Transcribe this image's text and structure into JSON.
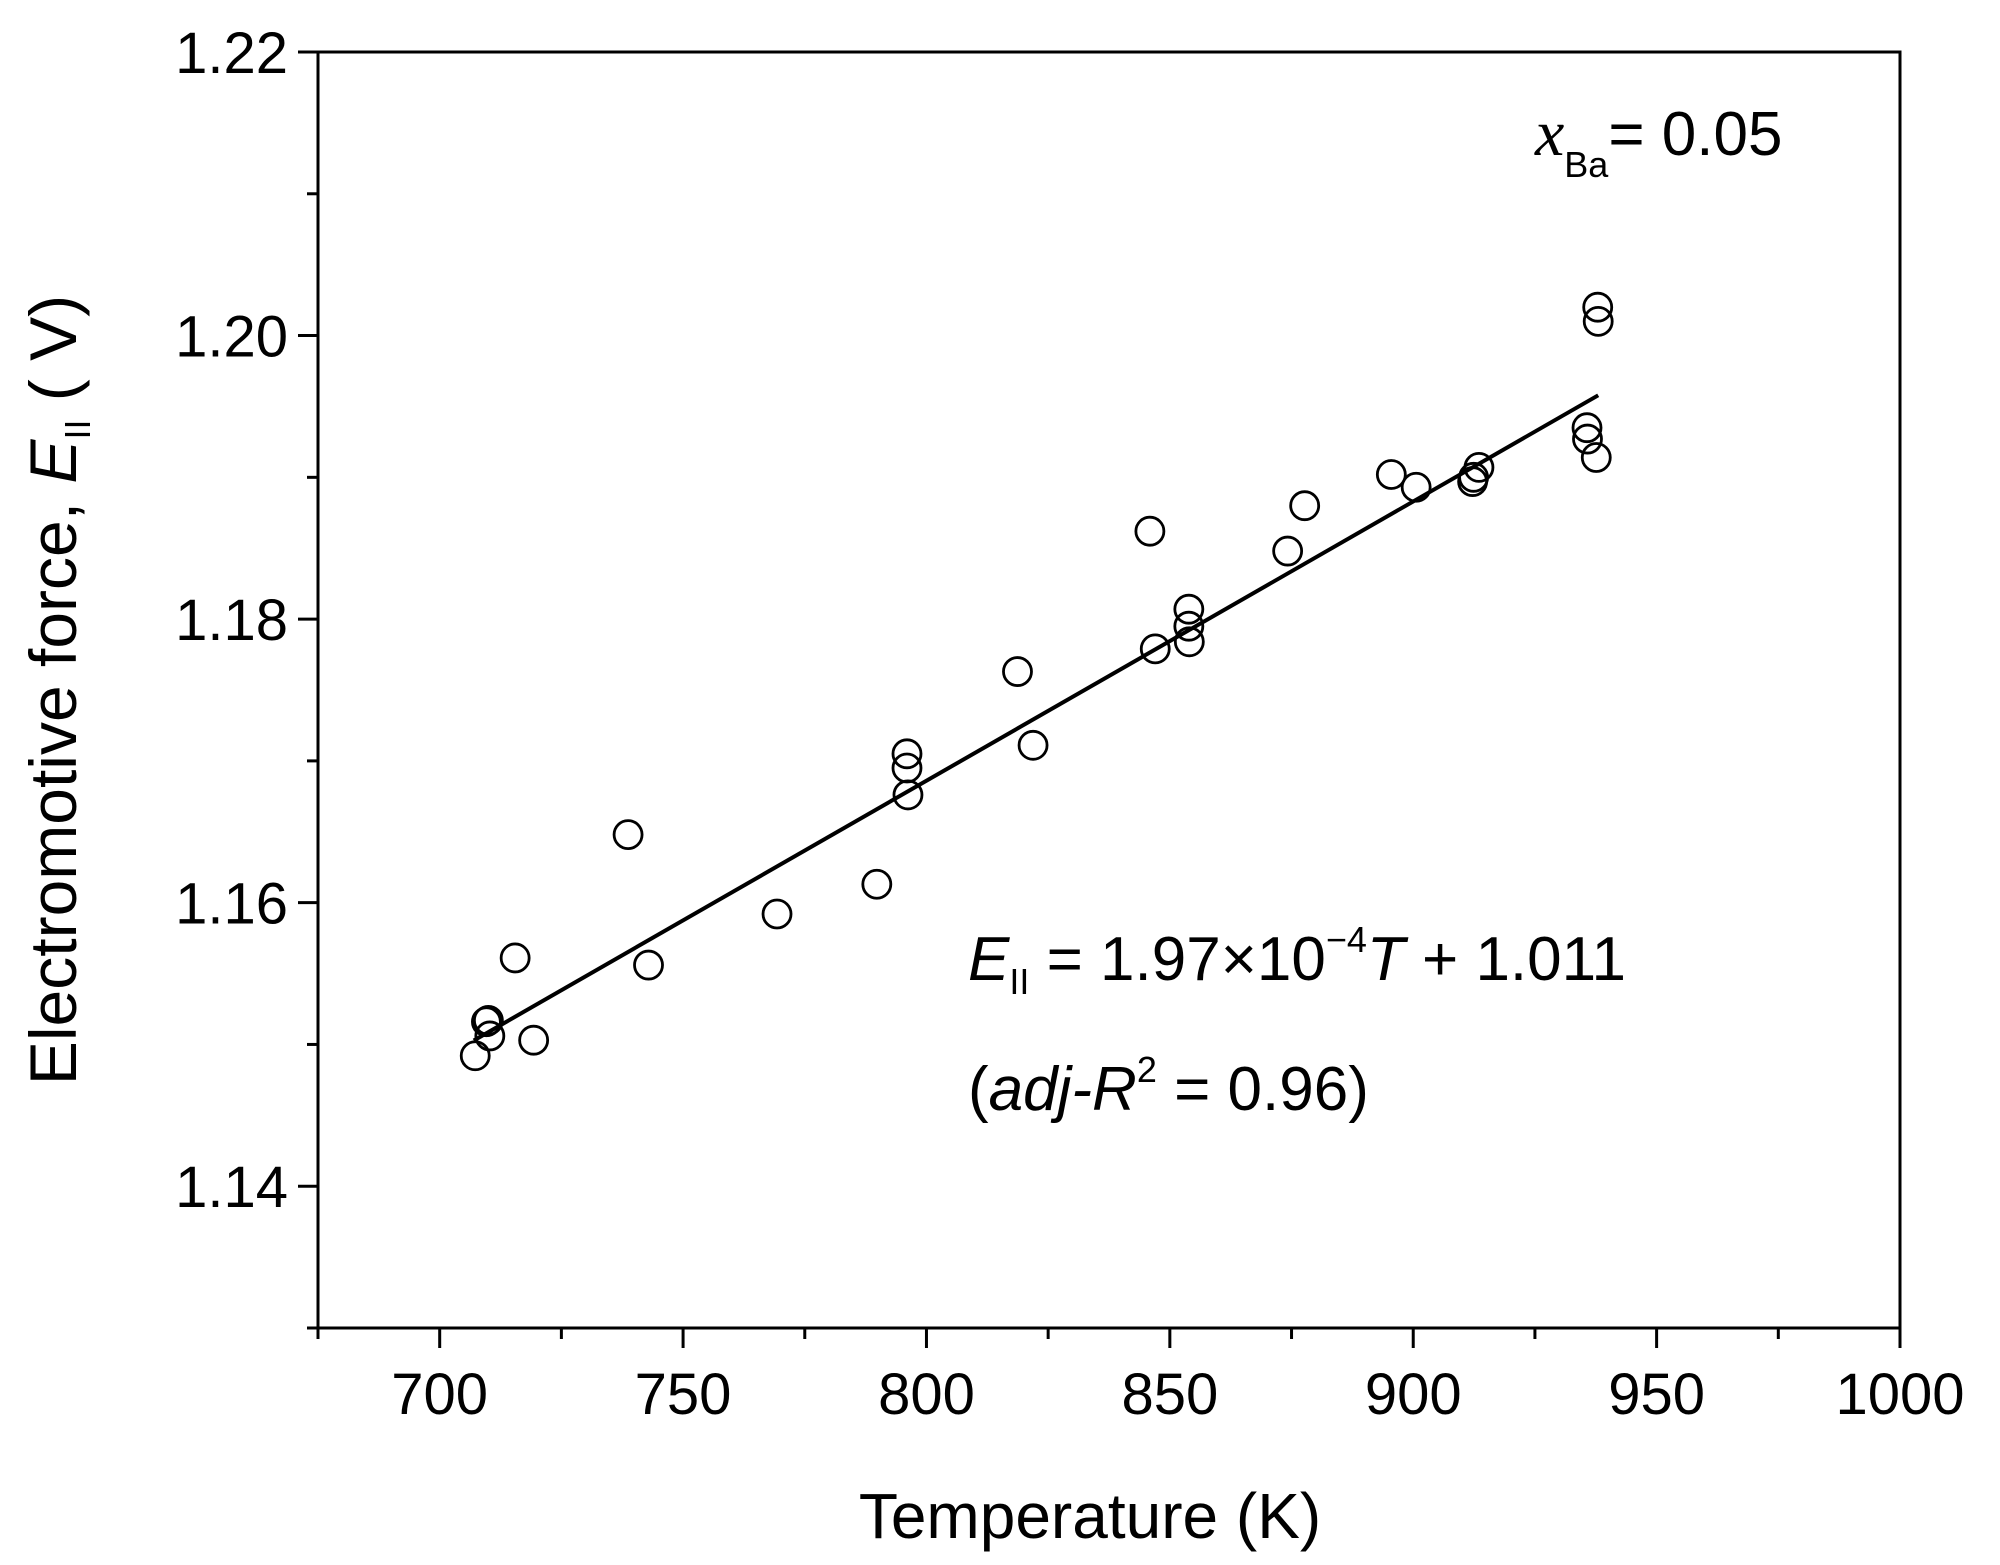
{
  "chart_data": {
    "type": "scatter",
    "title": "",
    "xlabel": "Temperature (K)",
    "ylabel": {
      "prefix": "Electromotive force, ",
      "symbol": "E",
      "subscript": "II",
      "suffix": " ( V)"
    },
    "xlim": [
      675,
      1000
    ],
    "ylim": [
      1.13,
      1.22
    ],
    "x_ticks": [
      700,
      750,
      800,
      850,
      900,
      950,
      1000
    ],
    "x_tick_labels": [
      "700",
      "750",
      "800",
      "850",
      "900",
      "950",
      "1000"
    ],
    "y_ticks": [
      1.14,
      1.16,
      1.18,
      1.2,
      1.22
    ],
    "y_tick_labels": [
      "1.14",
      "1.16",
      "1.18",
      "1.20",
      "1.22"
    ],
    "grid": false,
    "legend": "none",
    "composition_label": {
      "symbol": "x",
      "subscript": "Ba",
      "value": "= 0.05"
    },
    "equation": {
      "symbol": "E",
      "subscript": "II",
      "middle": " = 1.97×10",
      "exponent": "−4",
      "variable": "T",
      "tail": " + 1.011"
    },
    "r2_label": {
      "open": "(",
      "italic": "adj-R",
      "exponent": "2",
      "tail": " = 0.96)"
    },
    "fit_line": {
      "slope": 0.000197,
      "intercept": 1.011,
      "x_range": [
        707,
        938
      ]
    },
    "series": [
      {
        "marker": "open-circle",
        "points": [
          [
            707.3,
            1.1492
          ],
          [
            710.0,
            1.1517
          ],
          [
            709.6,
            1.1516
          ],
          [
            710.3,
            1.1506
          ],
          [
            715.5,
            1.1561
          ],
          [
            719.3,
            1.1503
          ],
          [
            738.7,
            1.1648
          ],
          [
            742.9,
            1.1556
          ],
          [
            769.3,
            1.1592
          ],
          [
            789.8,
            1.1613
          ],
          [
            796.0,
            1.1705
          ],
          [
            796.0,
            1.1695
          ],
          [
            796.2,
            1.1676
          ],
          [
            818.7,
            1.1763
          ],
          [
            821.9,
            1.1711
          ],
          [
            845.9,
            1.1862
          ],
          [
            847.0,
            1.1779
          ],
          [
            853.9,
            1.1807
          ],
          [
            853.9,
            1.1795
          ],
          [
            854.0,
            1.1784
          ],
          [
            874.2,
            1.1848
          ],
          [
            877.7,
            1.188
          ],
          [
            895.5,
            1.1902
          ],
          [
            900.6,
            1.1893
          ],
          [
            912.2,
            1.1897
          ],
          [
            912.4,
            1.19
          ],
          [
            913.5,
            1.1907
          ],
          [
            935.8,
            1.1927
          ],
          [
            935.7,
            1.1935
          ],
          [
            937.6,
            1.1914
          ],
          [
            937.9,
            1.202
          ],
          [
            938.0,
            1.201
          ]
        ]
      }
    ]
  }
}
